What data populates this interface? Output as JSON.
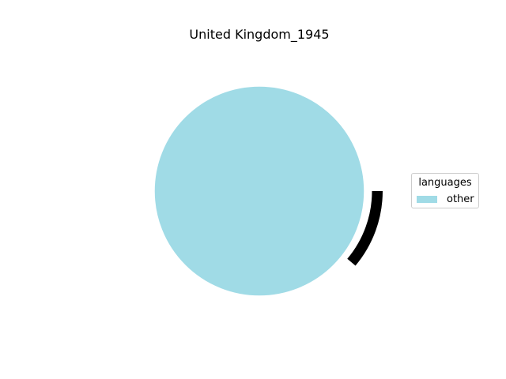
{
  "chart_data": {
    "type": "pie",
    "title": "United Kingdom_1945",
    "legend": {
      "title": "languages",
      "placement": "right"
    },
    "slices": [
      {
        "label": "other",
        "value": 100,
        "color": "#a0dbe6"
      }
    ]
  }
}
